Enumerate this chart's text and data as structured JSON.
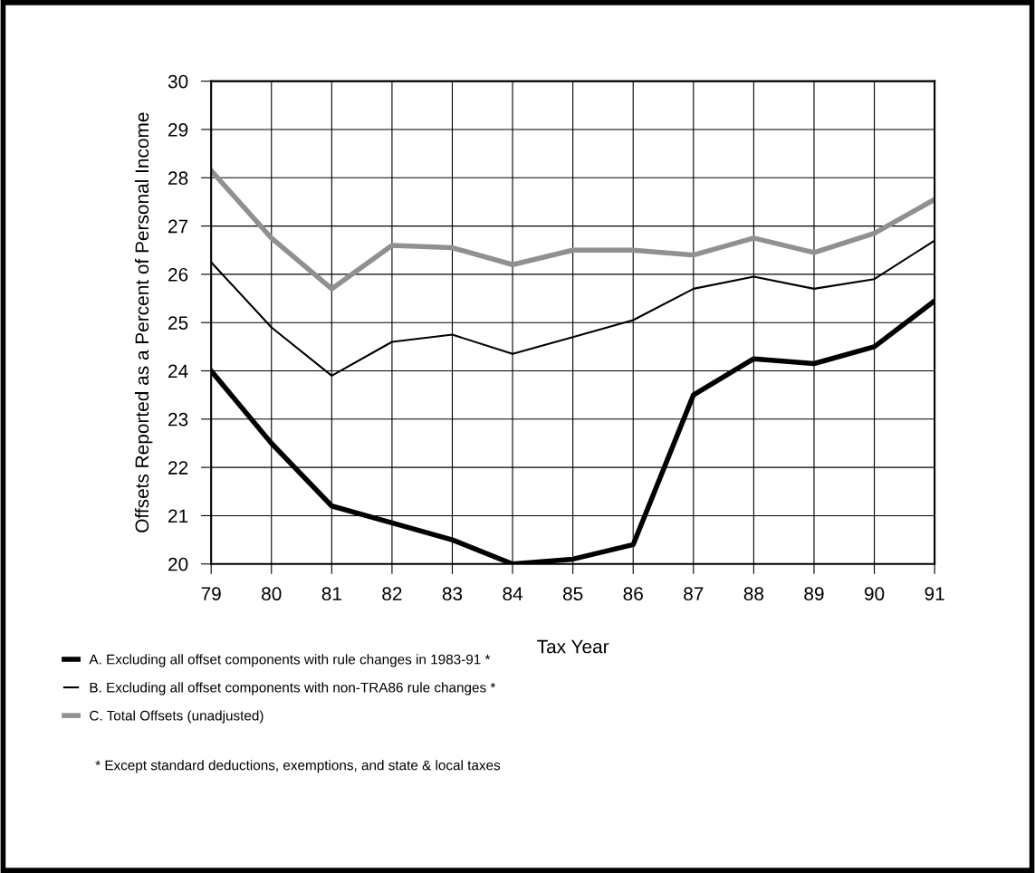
{
  "chart_data": {
    "type": "line",
    "xlabel": "Tax Year",
    "ylabel": "Offsets Reported as a Percent of Personal Income",
    "x": [
      79,
      80,
      81,
      82,
      83,
      84,
      85,
      86,
      87,
      88,
      89,
      90,
      91
    ],
    "series": [
      {
        "name": "A. Excluding all offset components with rule changes in 1983-91 *",
        "color": "#000000",
        "values": [
          24.0,
          22.5,
          21.2,
          20.85,
          20.5,
          20.0,
          20.1,
          20.4,
          23.5,
          24.25,
          24.15,
          24.5,
          25.45
        ]
      },
      {
        "name": "B. Excluding all offset components with non-TRA86 rule changes *",
        "color": "#000000",
        "values": [
          26.25,
          24.9,
          23.9,
          24.6,
          24.75,
          24.35,
          24.7,
          25.05,
          25.7,
          25.95,
          25.7,
          25.9,
          26.7
        ]
      },
      {
        "name": "C. Total Offsets (unadjusted)",
        "color": "#909090",
        "values": [
          28.15,
          26.75,
          25.7,
          26.6,
          26.55,
          26.2,
          26.5,
          26.5,
          26.4,
          26.75,
          26.45,
          26.85,
          27.55
        ]
      }
    ],
    "xlim": [
      79,
      91
    ],
    "xticks": [
      79,
      80,
      81,
      82,
      83,
      84,
      85,
      86,
      87,
      88,
      89,
      90,
      91
    ],
    "ylim": [
      20,
      30
    ],
    "yticks": [
      20,
      21,
      22,
      23,
      24,
      25,
      26,
      27,
      28,
      29,
      30
    ],
    "grid": true,
    "legend": "bottom left",
    "marker": "none",
    "line_style": "solid",
    "annotations": [
      "* Except standard deductions, exemptions, and state & local taxes"
    ]
  }
}
